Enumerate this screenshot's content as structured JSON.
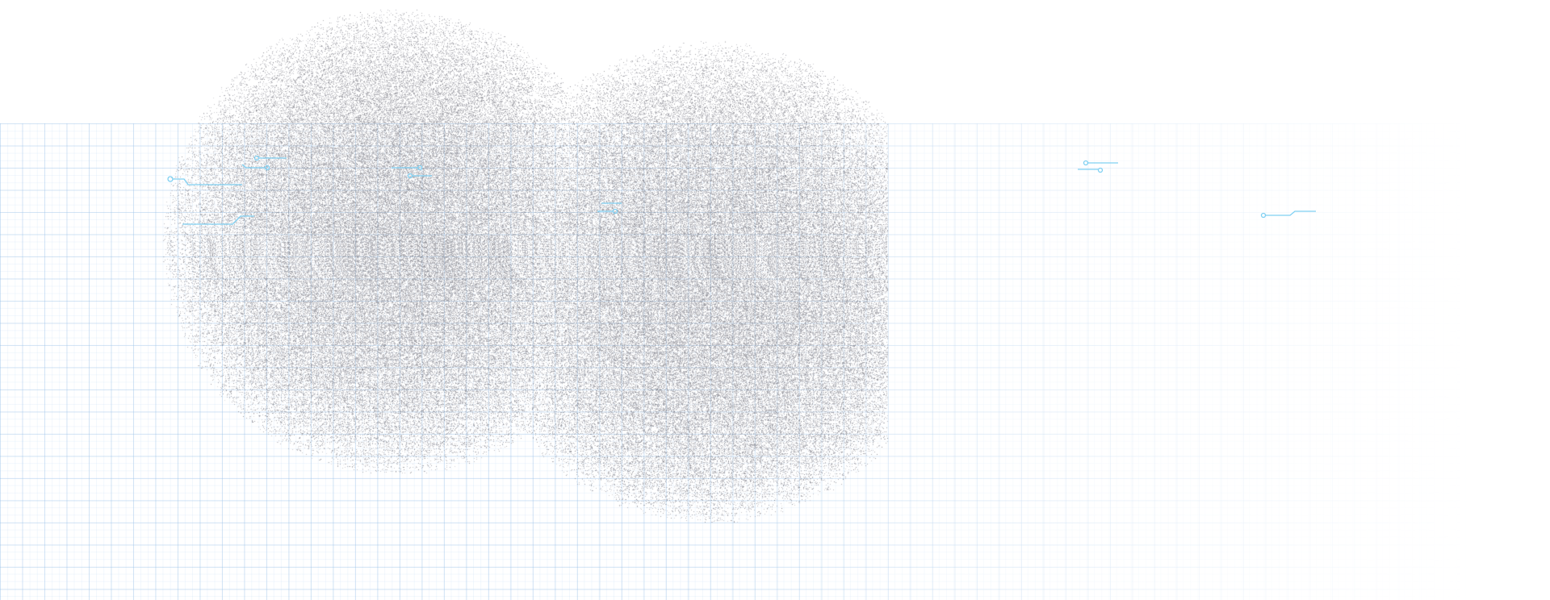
{
  "colors": {
    "background": "#ffffff",
    "grid": "#96bee6",
    "noise": "#8a8a8a",
    "circuit": "#7fd0f2"
  }
}
